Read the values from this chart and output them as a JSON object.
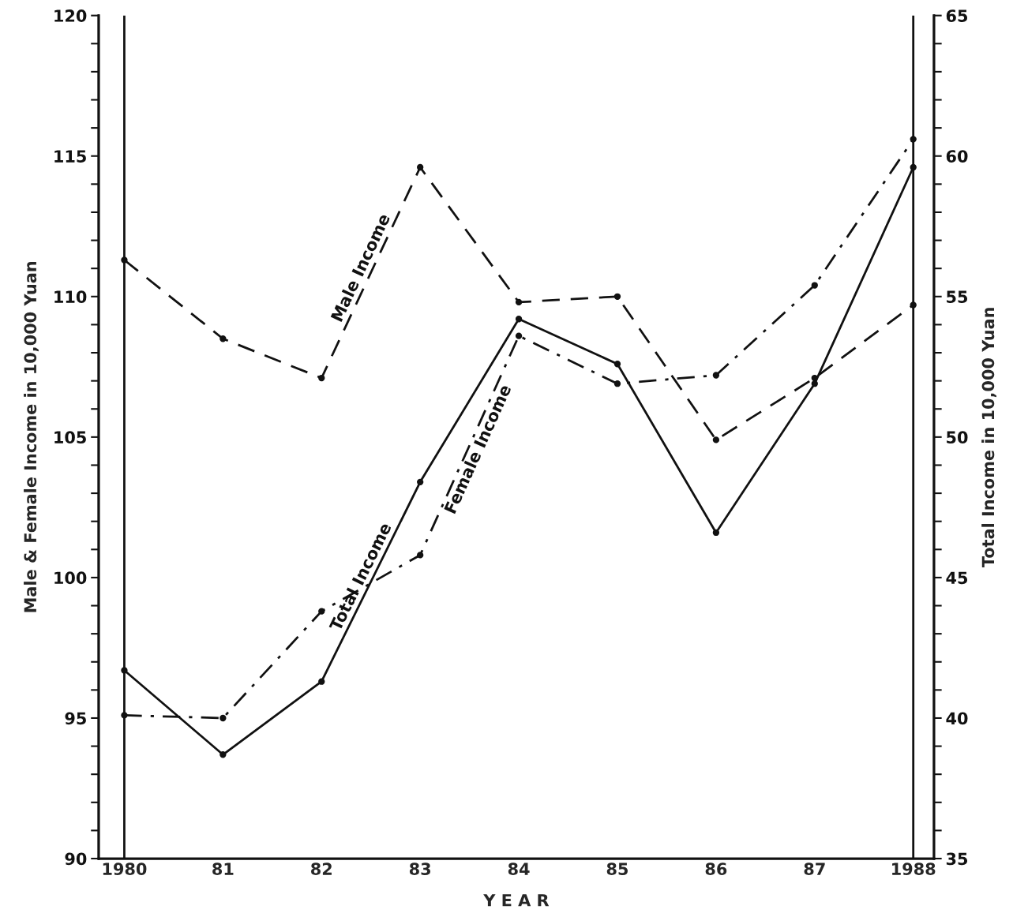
{
  "chart_data": {
    "type": "line",
    "xlabel": "Y E A R",
    "ylabel": "Male & Female Income in 10,000 Yuan",
    "y2label": "Total Income in 10,000 Yuan",
    "categories": [
      "1980",
      "81",
      "82",
      "83",
      "84",
      "85",
      "86",
      "87",
      "1988"
    ],
    "series": [
      {
        "name": "Male Income",
        "color": "#111111",
        "line_style": "dashed",
        "values": [
          111.3,
          108.5,
          107.1,
          114.6,
          109.8,
          110.0,
          104.9,
          107.1,
          109.7
        ]
      },
      {
        "name": "Total Income",
        "color": "#111111",
        "line_style": "solid",
        "axis": "y2",
        "values": [
          41.7,
          38.7,
          41.3,
          48.4,
          54.2,
          52.6,
          46.6,
          51.9,
          59.6
        ]
      },
      {
        "name": "Female Income",
        "color": "#111111",
        "line_style": "dashdot",
        "values": [
          95.1,
          95.0,
          98.8,
          100.8,
          108.6,
          106.9,
          107.2,
          110.4,
          115.6
        ]
      }
    ],
    "ylim": [
      90,
      120
    ],
    "yticks": [
      90,
      {
        "value": 91,
        "label": null
      },
      {
        "value": 92,
        "label": null
      },
      {
        "value": 93,
        "label": null
      },
      {
        "value": 94,
        "label": null
      },
      95,
      {
        "value": 96,
        "label": null
      },
      {
        "value": 97,
        "label": null
      },
      {
        "value": 98,
        "label": null
      },
      {
        "value": 99,
        "label": null
      },
      100,
      {
        "value": 101,
        "label": null
      },
      {
        "value": 102,
        "label": null
      },
      {
        "value": 103,
        "label": null
      },
      {
        "value": 104,
        "label": null
      },
      105,
      {
        "value": 106,
        "label": null
      },
      {
        "value": 107,
        "label": null
      },
      {
        "value": 108,
        "label": null
      },
      {
        "value": 109,
        "label": null
      },
      110,
      {
        "value": 111,
        "label": null
      },
      {
        "value": 112,
        "label": null
      },
      {
        "value": 113,
        "label": null
      },
      {
        "value": 114,
        "label": null
      },
      115,
      {
        "value": 116,
        "label": null
      },
      {
        "value": 117,
        "label": null
      },
      {
        "value": 118,
        "label": null
      },
      {
        "value": 119,
        "label": null
      },
      120
    ],
    "y2lim": [
      35,
      65
    ],
    "y2ticks": [
      35,
      {
        "value": 36,
        "label": null
      },
      {
        "value": 37,
        "label": null
      },
      {
        "value": 38,
        "label": null
      },
      {
        "value": 39,
        "label": null
      },
      40,
      {
        "value": 41,
        "label": null
      },
      {
        "value": 42,
        "label": null
      },
      {
        "value": 43,
        "label": null
      },
      {
        "value": 44,
        "label": null
      },
      45,
      {
        "value": 46,
        "label": null
      },
      {
        "value": 47,
        "label": null
      },
      {
        "value": 48,
        "label": null
      },
      {
        "value": 49,
        "label": null
      },
      50,
      {
        "value": 51,
        "label": null
      },
      {
        "value": 52,
        "label": null
      },
      {
        "value": 53,
        "label": null
      },
      {
        "value": 54,
        "label": null
      },
      55,
      {
        "value": 56,
        "label": null
      },
      {
        "value": 57,
        "label": null
      },
      {
        "value": 58,
        "label": null
      },
      {
        "value": 59,
        "label": null
      },
      60,
      {
        "value": 61,
        "label": null
      },
      {
        "value": 62,
        "label": null
      },
      {
        "value": 63,
        "label": null
      },
      {
        "value": 64,
        "label": null
      },
      65
    ],
    "ref_lines": [
      {
        "axis": "x",
        "value": "1980",
        "color": "#111111",
        "line_style": "solid"
      },
      {
        "axis": "x",
        "value": "1988",
        "color": "#111111",
        "line_style": "solid"
      }
    ],
    "marker": "circle",
    "grid": false,
    "legend": false
  }
}
